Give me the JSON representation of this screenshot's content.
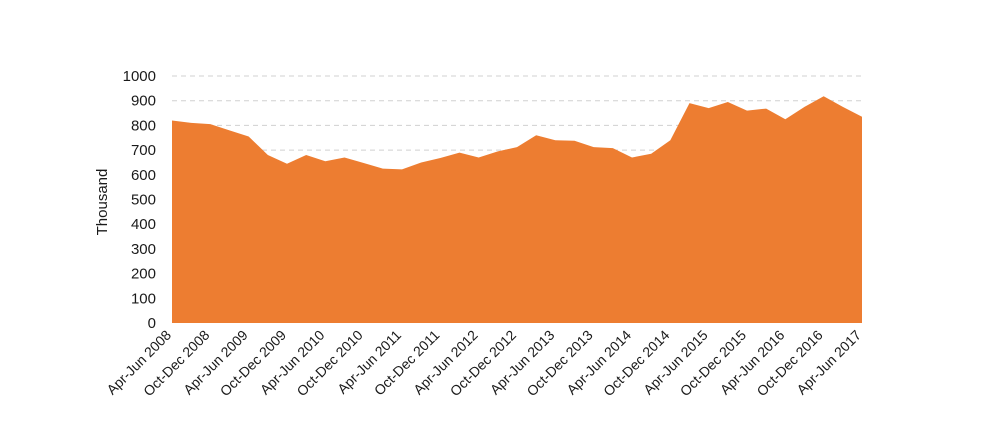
{
  "chart_data": {
    "type": "area",
    "title": "",
    "xlabel": "",
    "ylabel": "Thousand",
    "ylim": [
      0,
      1000
    ],
    "yticks": [
      0,
      100,
      200,
      300,
      400,
      500,
      600,
      700,
      800,
      900,
      1000
    ],
    "grid": "horizontal-dashed",
    "legend": "none",
    "color": "#ED7D31",
    "x_tick_labels": [
      "Apr-Jun 2008",
      "Oct-Dec 2008",
      "Apr-Jun 2009",
      "Oct-Dec 2009",
      "Apr-Jun 2010",
      "Oct-Dec 2010",
      "Apr-Jun 2011",
      "Oct-Dec 2011",
      "Apr-Jun 2012",
      "Oct-Dec 2012",
      "Apr-Jun 2013",
      "Oct-Dec 2013",
      "Apr-Jun 2014",
      "Oct-Dec 2014",
      "Apr-Jun 2015",
      "Oct-Dec 2015",
      "Apr-Jun 2016",
      "Oct-Dec 2016",
      "Apr-Jun 2017"
    ],
    "series": [
      {
        "values": [
          820,
          810,
          805,
          780,
          755,
          680,
          645,
          680,
          655,
          670,
          648,
          625,
          622,
          650,
          668,
          690,
          670,
          695,
          712,
          760,
          740,
          738,
          712,
          708,
          670,
          685,
          740,
          890,
          870,
          895,
          860,
          868,
          825,
          875,
          918,
          875,
          835
        ]
      }
    ]
  }
}
